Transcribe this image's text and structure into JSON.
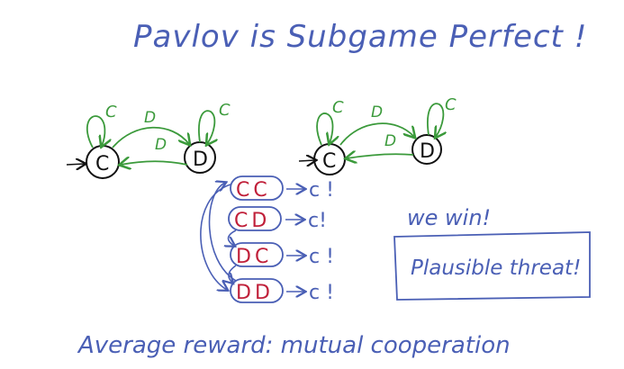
{
  "title": "Pavlov is Subgame Perfect !",
  "diagram_left": {
    "state_c": "C",
    "state_d": "D",
    "loop_c": "C",
    "loop_d": "C",
    "edge_c_to_d": "D",
    "edge_d_to_c": "D"
  },
  "diagram_right": {
    "state_c": "C",
    "state_d": "D",
    "loop_c": "C",
    "loop_d": "C",
    "edge_c_to_d": "D",
    "edge_d_to_c": "D"
  },
  "histories": [
    {
      "pair": "CC",
      "result": "c !"
    },
    {
      "pair": "CD",
      "result": "c!"
    },
    {
      "pair": "DC",
      "result": "c !"
    },
    {
      "pair": "DD",
      "result": "c !"
    }
  ],
  "we_win": "we win!",
  "plausible_threat": "Plausible threat!",
  "footer": "Average reward: mutual cooperation"
}
